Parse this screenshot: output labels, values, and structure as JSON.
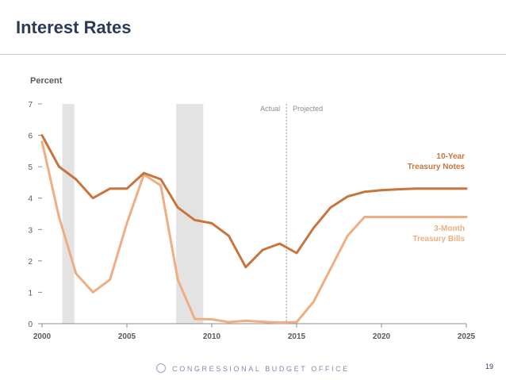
{
  "slide": {
    "title": "Interest Rates",
    "footer": "CONGRESSIONAL BUDGET OFFICE",
    "page_number": "19"
  },
  "colors": {
    "ten_year": "#c8743c",
    "three_month": "#eeae82",
    "recession": "#e3e3e3",
    "axis": "#8c8c8c"
  },
  "chart_data": {
    "type": "line",
    "ylabel": "Percent",
    "xlim": [
      2000,
      2025
    ],
    "ylim": [
      0,
      7
    ],
    "x_ticks": [
      2000,
      2005,
      2010,
      2015,
      2020,
      2025
    ],
    "y_ticks": [
      0,
      1,
      2,
      3,
      4,
      5,
      6,
      7
    ],
    "recessions": [
      [
        2001.2,
        2001.9
      ],
      [
        2007.9,
        2009.5
      ]
    ],
    "divider": {
      "x": 2014.4,
      "left_label": "Actual",
      "right_label": "Projected"
    },
    "series": [
      {
        "name": "10-Year Treasury Notes",
        "label_lines": [
          "10-Year",
          "Treasury Notes"
        ],
        "color_key": "ten_year",
        "x": [
          2000,
          2001,
          2002,
          2003,
          2004,
          2005,
          2006,
          2007,
          2008,
          2009,
          2010,
          2011,
          2012,
          2013,
          2014,
          2015,
          2016,
          2017,
          2018,
          2019,
          2020,
          2021,
          2022,
          2023,
          2024,
          2025
        ],
        "values": [
          6.0,
          5.0,
          4.6,
          4.0,
          4.3,
          4.3,
          4.8,
          4.6,
          3.7,
          3.3,
          3.2,
          2.8,
          1.8,
          2.35,
          2.55,
          2.25,
          3.05,
          3.7,
          4.05,
          4.2,
          4.25,
          4.28,
          4.3,
          4.3,
          4.3,
          4.3
        ]
      },
      {
        "name": "3-Month Treasury Bills",
        "label_lines": [
          "3-Month",
          "Treasury Bills"
        ],
        "color_key": "three_month",
        "x": [
          2000,
          2001,
          2002,
          2003,
          2004,
          2005,
          2006,
          2007,
          2008,
          2009,
          2010,
          2011,
          2012,
          2013,
          2014,
          2015,
          2016,
          2017,
          2018,
          2019,
          2020,
          2021,
          2022,
          2023,
          2024,
          2025
        ],
        "values": [
          5.8,
          3.4,
          1.6,
          1.0,
          1.4,
          3.2,
          4.75,
          4.4,
          1.4,
          0.15,
          0.14,
          0.05,
          0.09,
          0.06,
          0.03,
          0.05,
          0.7,
          1.75,
          2.8,
          3.4,
          3.4,
          3.4,
          3.4,
          3.4,
          3.4,
          3.4
        ]
      }
    ]
  }
}
